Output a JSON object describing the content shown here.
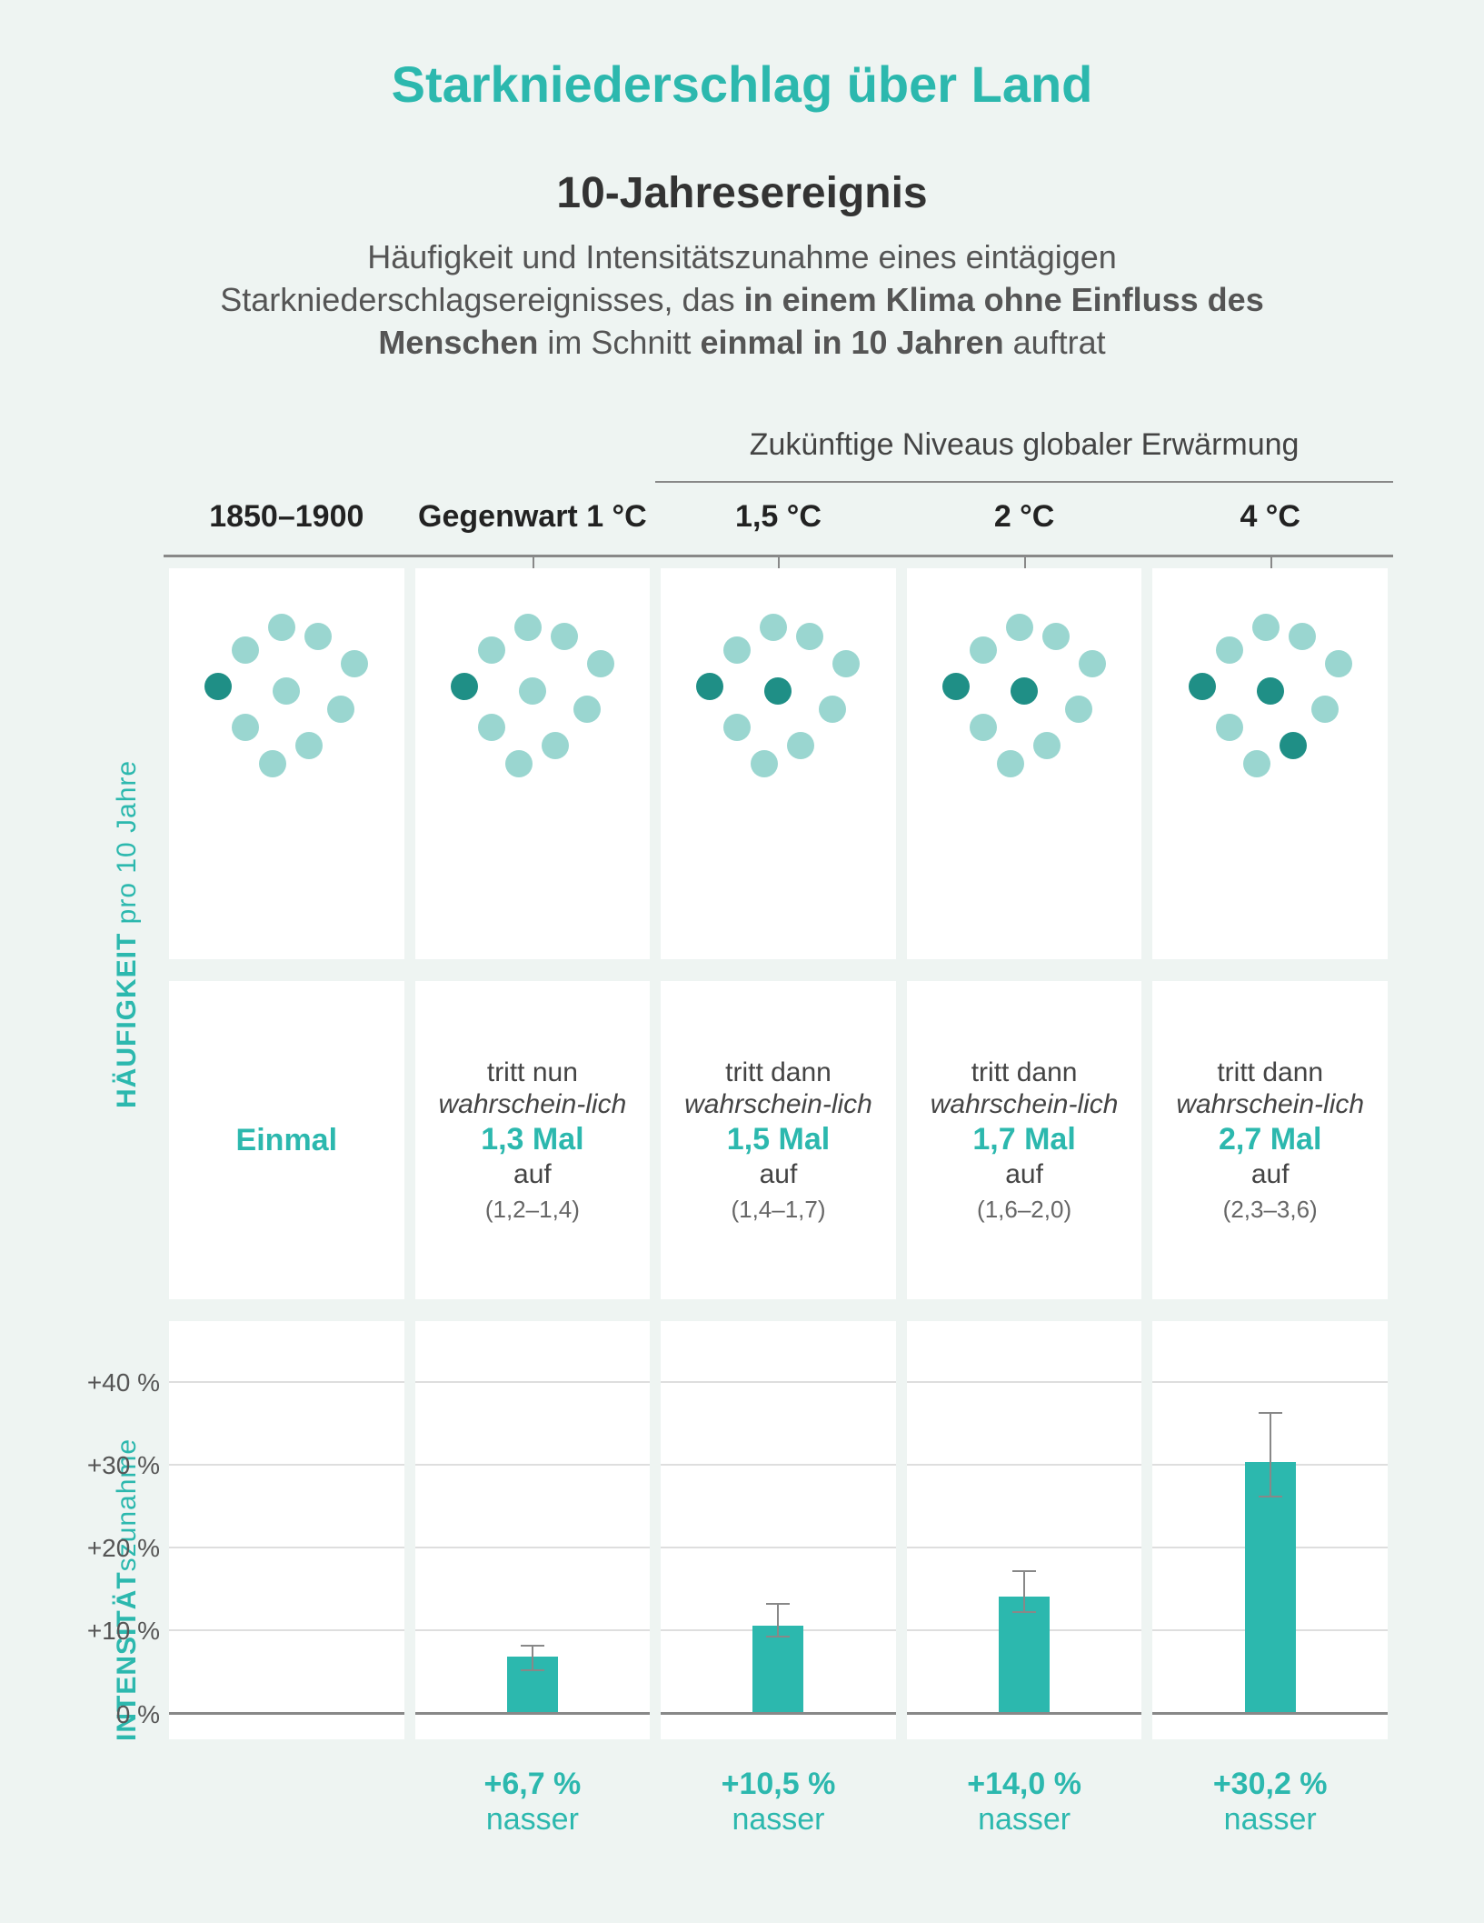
{
  "title": "Starkniederschlag über Land",
  "subtitle": "10-Jahresereignis",
  "description_html": "Häufigkeit und Intensitätszunahme eines eintägigen Starkniederschlagsereignisses, das <b>in einem Klima ohne Einfluss des Menschen</b> im Schnitt <b>einmal in 10 Jahren</b> auftrat",
  "future_header": "Zukünftige Niveaus globaler Erwärmung",
  "columns": [
    {
      "label": "1850–1900"
    },
    {
      "label": "Gegenwart 1 °C"
    },
    {
      "label": "1,5 °C"
    },
    {
      "label": "2 °C"
    },
    {
      "label": "4 °C"
    }
  ],
  "ylabel_freq_strong": "HÄUFIGKEIT",
  "ylabel_freq_rest": " pro 10 Jahre",
  "ylabel_int_strong": "INTENSITÄT",
  "ylabel_int_rest": "szunahme",
  "dots": {
    "light_color": "#9ad6d0",
    "dark_color": "#1f8f86",
    "positions_light": [
      [
        70,
        0
      ],
      [
        110,
        10
      ],
      [
        30,
        25
      ],
      [
        150,
        40
      ],
      [
        0,
        65
      ],
      [
        75,
        70
      ],
      [
        135,
        90
      ],
      [
        30,
        110
      ],
      [
        100,
        130
      ],
      [
        60,
        150
      ]
    ],
    "columns": [
      {
        "dark_idx": [
          4
        ]
      },
      {
        "dark_idx": [
          4
        ]
      },
      {
        "dark_idx": [
          4,
          5
        ]
      },
      {
        "dark_idx": [
          4,
          5
        ]
      },
      {
        "dark_idx": [
          4,
          5,
          8
        ]
      }
    ]
  },
  "freq_text": {
    "baseline": "Einmal",
    "entries": [
      {
        "pre": "tritt nun",
        "mid": "wahrschein-lich",
        "val": "1,3 Mal",
        "post": "auf",
        "ci": "(1,2–1,4)"
      },
      {
        "pre": "tritt dann",
        "mid": "wahrschein-lich",
        "val": "1,5 Mal",
        "post": "auf",
        "ci": "(1,4–1,7)"
      },
      {
        "pre": "tritt dann",
        "mid": "wahrschein-lich",
        "val": "1,7 Mal",
        "post": "auf",
        "ci": "(1,6–2,0)"
      },
      {
        "pre": "tritt dann",
        "mid": "wahrschein-lich",
        "val": "2,7 Mal",
        "post": "auf",
        "ci": "(2,3–3,6)"
      }
    ]
  },
  "bars": {
    "type": "bar",
    "y_max": 45,
    "yticks": [
      0,
      10,
      20,
      30,
      40
    ],
    "ytick_labels": [
      "0 %",
      "+10 %",
      "+20 %",
      "+30 %",
      "+40 %"
    ],
    "bar_color": "#2cb8ae",
    "grid_color": "#dedede",
    "baseline_color": "#888888",
    "entries": [
      {
        "value": 6.7,
        "err_low": 5,
        "err_high": 8,
        "label": "+6,7 %",
        "sub": "nasser"
      },
      {
        "value": 10.5,
        "err_low": 9,
        "err_high": 13,
        "label": "+10,5 %",
        "sub": "nasser"
      },
      {
        "value": 14.0,
        "err_low": 12,
        "err_high": 17,
        "label": "+14,0 %",
        "sub": "nasser"
      },
      {
        "value": 30.2,
        "err_low": 26,
        "err_high": 36,
        "label": "+30,2 %",
        "sub": "nasser"
      }
    ]
  },
  "colors": {
    "accent": "#2cb8ae",
    "background": "#eef4f2",
    "card_bg": "#ffffff",
    "text": "#3a4a4a"
  }
}
